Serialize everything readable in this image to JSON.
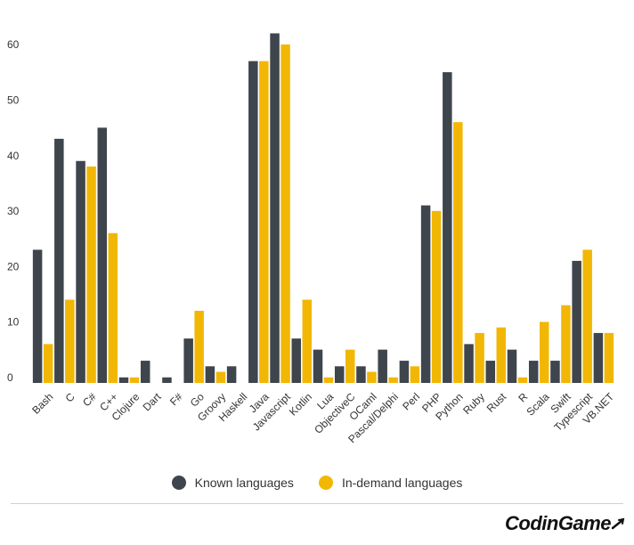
{
  "chart_data": {
    "type": "bar",
    "title": "",
    "xlabel": "",
    "ylabel": "",
    "ylim": [
      0,
      65
    ],
    "yticks": [
      0,
      10,
      20,
      30,
      40,
      50,
      60
    ],
    "categories": [
      "Bash",
      "C",
      "C#",
      "C++",
      "Clojure",
      "Dart",
      "F#",
      "Go",
      "Groovy",
      "Haskell",
      "Java",
      "Javascript",
      "Kotlin",
      "Lua",
      "ObjectiveC",
      "OCaml",
      "Pascal/Delphi",
      "Perl",
      "PHP",
      "Python",
      "Ruby",
      "Rust",
      "R",
      "Scala",
      "Swift",
      "Typescript",
      "VB.NET"
    ],
    "series": [
      {
        "name": "Known languages",
        "color": "#3f454c",
        "values": [
          24,
          44,
          40,
          46,
          1,
          4,
          1,
          8,
          3,
          3,
          58,
          63,
          8,
          6,
          3,
          3,
          6,
          4,
          32,
          56,
          7,
          4,
          6,
          4,
          4,
          22,
          9
        ]
      },
      {
        "name": "In-demand languages",
        "color": "#f2b705",
        "values": [
          7,
          15,
          39,
          27,
          1,
          0,
          0,
          13,
          2,
          0,
          58,
          61,
          15,
          1,
          6,
          2,
          1,
          3,
          31,
          47,
          9,
          10,
          1,
          11,
          14,
          24,
          9
        ]
      }
    ],
    "grid": false,
    "legend_position": "bottom"
  },
  "legend": {
    "known_label": "Known languages",
    "demand_label": "In-demand languages"
  },
  "branding": {
    "logo_text": "CodinGame"
  }
}
